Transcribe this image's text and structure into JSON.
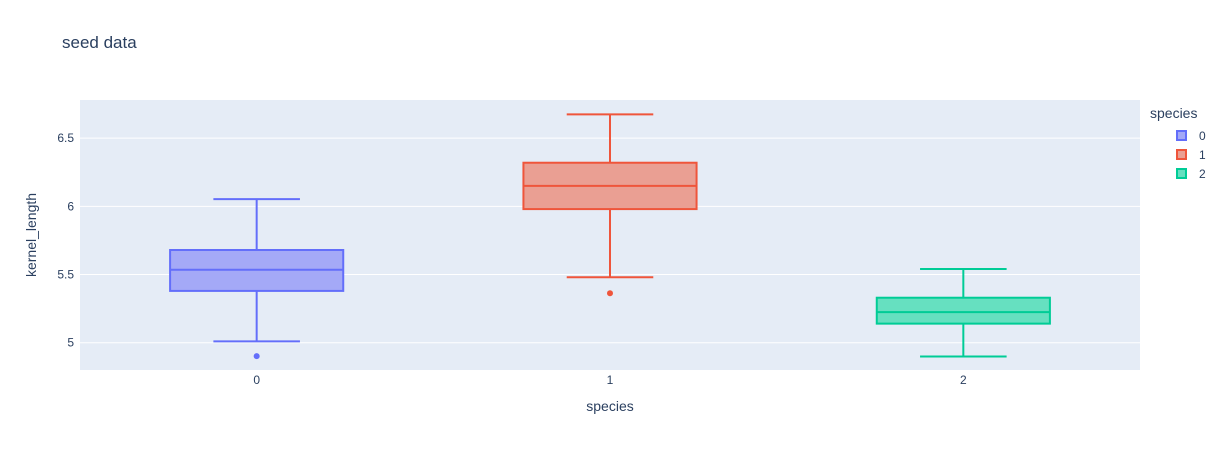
{
  "chart_data": {
    "type": "box",
    "title": "seed data",
    "xlabel": "species",
    "ylabel": "kernel_length",
    "categories": [
      "0",
      "1",
      "2"
    ],
    "ylim": [
      4.8,
      6.78
    ],
    "yticks": [
      5,
      5.5,
      6,
      6.5
    ],
    "ytick_labels": [
      "5",
      "5.5",
      "6",
      "6.5"
    ],
    "grid": true,
    "legend": {
      "title": "species",
      "placement": "top-right"
    },
    "series": [
      {
        "name": "0",
        "color": "#636efa",
        "fill": "#a4a9f7",
        "lowerfence": 5.01,
        "q1": 5.38,
        "median": 5.535,
        "q3": 5.68,
        "upperfence": 6.053,
        "outliers": [
          4.902
        ]
      },
      {
        "name": "1",
        "color": "#ef553b",
        "fill": "#ea9f93",
        "lowerfence": 5.48,
        "q1": 5.98,
        "median": 6.15,
        "q3": 6.32,
        "upperfence": 6.675,
        "outliers": [
          5.363
        ]
      },
      {
        "name": "2",
        "color": "#00cc96",
        "fill": "#66e0c0",
        "lowerfence": 4.899,
        "q1": 5.14,
        "median": 5.224,
        "q3": 5.33,
        "upperfence": 5.541,
        "outliers": []
      }
    ]
  }
}
